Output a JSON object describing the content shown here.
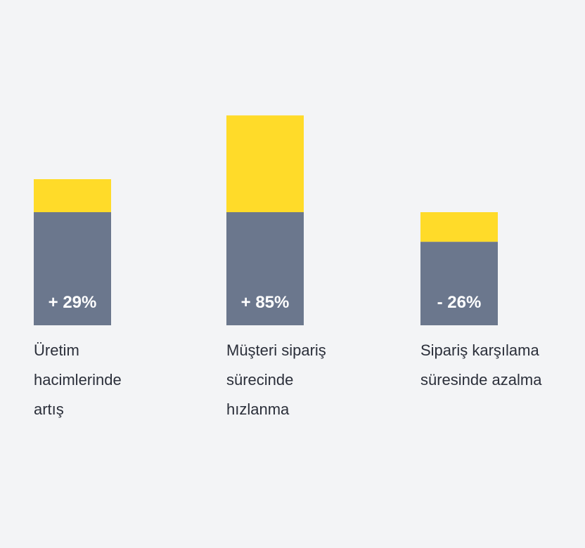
{
  "chart_data": {
    "type": "bar",
    "categories": [
      "Üretim\nhacimlerinde\nartış",
      "Müşteri sipariş\nsürecinde\nhızlanma",
      "Sipariş karşılama\nsüresinde azalma"
    ],
    "values": [
      29,
      85,
      -26
    ],
    "value_labels": [
      "+ 29%",
      "+ 85%",
      "- 26%"
    ],
    "colors": [
      "#6b778d",
      "#ffdb29"
    ]
  }
}
